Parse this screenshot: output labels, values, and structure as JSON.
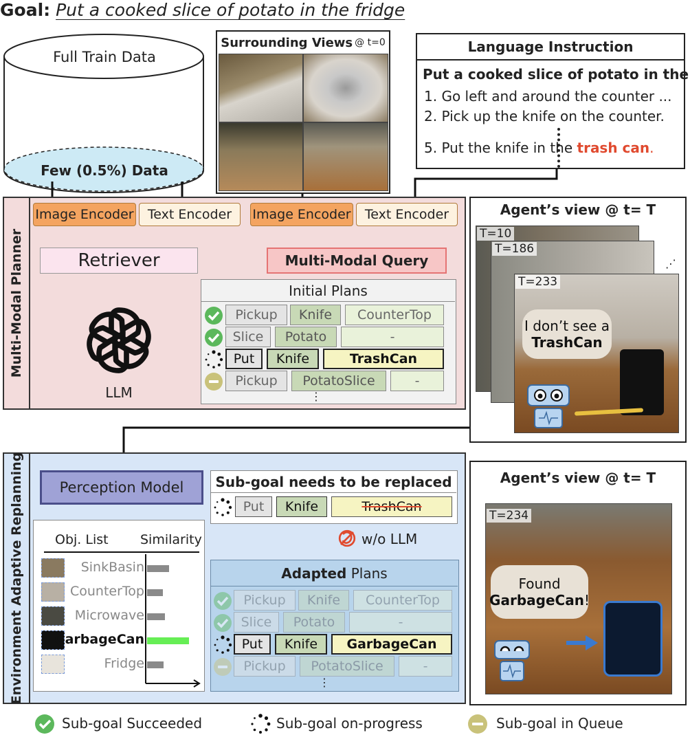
{
  "goal": {
    "label": "Goal:",
    "text": "Put a cooked slice of potato in the fridge"
  },
  "db": {
    "full": "Full Train Data",
    "few": "Few (0.5%) Data"
  },
  "surrounding": {
    "title": "Surrounding Views",
    "time": "@ t=0"
  },
  "instruction": {
    "title": "Language Instruction",
    "main": "Put a cooked slice of potato in the ...",
    "steps": [
      {
        "num": "1.",
        "text": "Go left and around the counter ..."
      },
      {
        "num": "2.",
        "text": "Pick up the knife on the counter."
      },
      {
        "num": "5.",
        "text": "Put the knife in the ",
        "highlight": "trash can",
        "end": "."
      }
    ]
  },
  "planner": {
    "side_label": "Multi-Modal Planner",
    "image_encoder": "Image Encoder",
    "text_encoder": "Text Encoder",
    "retriever": "Retriever",
    "query": "Multi-Modal Query",
    "llm": "LLM",
    "plans_title": "Initial Plans",
    "plans": [
      {
        "a": "Pickup",
        "b": "Knife",
        "c": "CounterTop"
      },
      {
        "a": "Slice",
        "b": "Potato",
        "c": "-"
      },
      {
        "a": "Put",
        "b": "Knife",
        "c": "TrashCan"
      },
      {
        "a": "Pickup",
        "b": "PotatoSlice",
        "c": "-"
      }
    ],
    "ellipsis": "⋮"
  },
  "agent_top": {
    "title": "Agent’s view @ t= T",
    "frames": [
      "T=10",
      "T=186",
      "T=233"
    ],
    "bubble_pre": "I don’t see a ",
    "bubble_bold": "TrashCan",
    "dots": "⋰"
  },
  "replan": {
    "side_label": "Environment Adaptive Replanning",
    "perception": "Perception Model",
    "subgoal_title": "Sub-goal needs to be replaced",
    "subgoal": {
      "a": "Put",
      "b": "Knife",
      "c": "TrashCan"
    },
    "wo_llm": "w/o LLM",
    "obj_list": "Obj. List",
    "similarity": "Similarity",
    "objects": [
      {
        "name": "SinkBasin",
        "sim": 0.45
      },
      {
        "name": "CounterTop",
        "sim": 0.32
      },
      {
        "name": "Microwave",
        "sim": 0.36
      },
      {
        "name": "GarbageCan",
        "sim": 0.85
      },
      {
        "name": "Fridge",
        "sim": 0.34
      }
    ],
    "adapted_bold": "Adapted",
    "adapted_rest": " Plans",
    "plans": [
      {
        "a": "Pickup",
        "b": "Knife",
        "c": "CounterTop"
      },
      {
        "a": "Slice",
        "b": "Potato",
        "c": "-"
      },
      {
        "a": "Put",
        "b": "Knife",
        "c": "GarbageCan"
      },
      {
        "a": "Pickup",
        "b": "PotatoSlice",
        "c": "-"
      }
    ],
    "ellipsis": "⋮"
  },
  "agent_bottom": {
    "title": "Agent’s view @ t= T",
    "frame": "T=234",
    "bubble_pre": "Found",
    "bubble_bold": "GarbageCan",
    "bubble_end": "!"
  },
  "legend": {
    "succeeded": "Sub-goal Succeeded",
    "progress": "Sub-goal on-progress",
    "queue": "Sub-goal in Queue"
  },
  "colors": {
    "succeeded": "#5cb85c",
    "queue": "#c9c27a",
    "encoder": "#f4a460",
    "highlight": "#e04a2f"
  }
}
